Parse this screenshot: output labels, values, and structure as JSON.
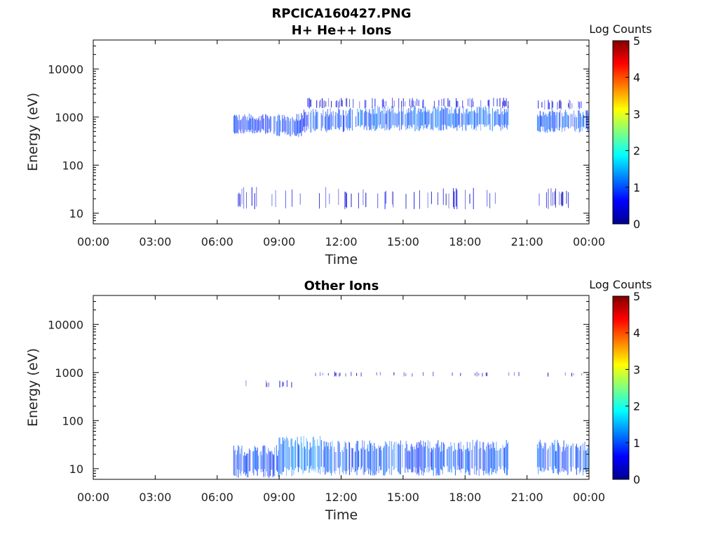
{
  "chart_data": [
    {
      "type": "heatmap",
      "title": "RPCICA160427.PNG",
      "subtitle": "H+ He++ Ions",
      "xlabel": "Time",
      "ylabel": "Energy (eV)",
      "x_ticks": [
        "00:00",
        "03:00",
        "06:00",
        "09:00",
        "12:00",
        "15:00",
        "18:00",
        "21:00",
        "00:00"
      ],
      "xlim_hours": [
        0,
        24
      ],
      "y_scale": "log",
      "y_ticks": [
        "10",
        "100",
        "1000",
        "10000"
      ],
      "ylim": [
        6,
        40000
      ],
      "colorbar": {
        "label": "Log Counts",
        "range": [
          0,
          5
        ],
        "ticks": [
          "0",
          "1",
          "2",
          "3",
          "4",
          "5"
        ],
        "colormap": "jet"
      },
      "bands": [
        {
          "t_start": 6.8,
          "t_end": 8.8,
          "e_low": 500,
          "e_high": 1000,
          "level": 0.85,
          "density": 0.9
        },
        {
          "t_start": 8.8,
          "t_end": 10.2,
          "e_low": 450,
          "e_high": 1000,
          "level": 0.9,
          "density": 0.9
        },
        {
          "t_start": 10.2,
          "t_end": 12.8,
          "e_low": 550,
          "e_high": 1250,
          "level": 0.95,
          "density": 0.85
        },
        {
          "t_start": 12.8,
          "t_end": 20.1,
          "e_low": 600,
          "e_high": 1400,
          "level": 1.05,
          "density": 0.9
        },
        {
          "t_start": 21.5,
          "t_end": 24.0,
          "e_low": 550,
          "e_high": 1200,
          "level": 1.0,
          "density": 0.85
        },
        {
          "t_start": 10.2,
          "t_end": 20.1,
          "e_low": 1600,
          "e_high": 2300,
          "level": 0.45,
          "density": 0.35
        },
        {
          "t_start": 21.5,
          "t_end": 24.0,
          "e_low": 1500,
          "e_high": 2100,
          "level": 0.45,
          "density": 0.35
        },
        {
          "t_start": 6.8,
          "t_end": 20.1,
          "e_low": 14,
          "e_high": 30,
          "level": 0.4,
          "density": 0.18
        },
        {
          "t_start": 21.5,
          "t_end": 24.0,
          "e_low": 14,
          "e_high": 28,
          "level": 0.4,
          "density": 0.18
        }
      ]
    },
    {
      "type": "heatmap",
      "title": "Other Ions",
      "xlabel": "Time",
      "ylabel": "Energy (eV)",
      "x_ticks": [
        "00:00",
        "03:00",
        "06:00",
        "09:00",
        "12:00",
        "15:00",
        "18:00",
        "21:00",
        "00:00"
      ],
      "xlim_hours": [
        0,
        24
      ],
      "y_scale": "log",
      "y_ticks": [
        "10",
        "100",
        "1000",
        "10000"
      ],
      "ylim": [
        6,
        40000
      ],
      "colorbar": {
        "label": "Log Counts",
        "range": [
          0,
          5
        ],
        "ticks": [
          "0",
          "1",
          "2",
          "3",
          "4",
          "5"
        ],
        "colormap": "jet"
      },
      "bands": [
        {
          "t_start": 6.8,
          "t_end": 9.0,
          "e_low": 8,
          "e_high": 24,
          "level": 0.95,
          "density": 0.9
        },
        {
          "t_start": 9.0,
          "t_end": 11.0,
          "e_low": 9,
          "e_high": 35,
          "level": 1.2,
          "density": 0.9
        },
        {
          "t_start": 11.0,
          "t_end": 20.1,
          "e_low": 9,
          "e_high": 30,
          "level": 1.0,
          "density": 0.85
        },
        {
          "t_start": 21.5,
          "t_end": 24.0,
          "e_low": 9,
          "e_high": 30,
          "level": 1.0,
          "density": 0.8
        },
        {
          "t_start": 7.0,
          "t_end": 9.8,
          "e_low": 500,
          "e_high": 650,
          "level": 0.35,
          "density": 0.15
        },
        {
          "t_start": 10.5,
          "t_end": 24.0,
          "e_low": 850,
          "e_high": 1000,
          "level": 0.3,
          "density": 0.08
        }
      ]
    }
  ]
}
